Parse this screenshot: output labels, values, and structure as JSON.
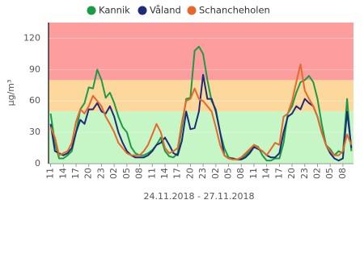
{
  "chart_data": {
    "type": "line",
    "x_label": "24.11.2018 - 27.11.2018",
    "y_label": "µg/m³",
    "categories": [
      "11",
      null,
      null,
      "14",
      null,
      null,
      "17",
      null,
      null,
      "20",
      null,
      null,
      "23",
      null,
      null,
      "02",
      null,
      null,
      "05",
      null,
      null,
      "08",
      null,
      null,
      "11",
      null,
      null,
      "14",
      null,
      null,
      "17",
      null,
      null,
      "20",
      null,
      null,
      "23",
      null,
      null,
      "02",
      null,
      null,
      "05",
      null,
      null,
      "08",
      null,
      null,
      "11",
      null,
      null,
      "14",
      null,
      null,
      "17",
      null,
      null,
      "20",
      null,
      null,
      "23",
      null,
      null,
      "02",
      null,
      null,
      "05",
      null,
      null,
      "08",
      null,
      null
    ],
    "series": [
      {
        "name": "Kannik",
        "color": "#1a9c45",
        "values": [
          48,
          20,
          5,
          5,
          8,
          12,
          30,
          52,
          58,
          73,
          72,
          90,
          80,
          63,
          68,
          58,
          45,
          35,
          30,
          16,
          10,
          8,
          8,
          10,
          13,
          18,
          25,
          12,
          7,
          6,
          10,
          35,
          62,
          63,
          108,
          112,
          105,
          80,
          60,
          52,
          30,
          15,
          6,
          5,
          4,
          5,
          8,
          12,
          18,
          16,
          8,
          3,
          3,
          5,
          5,
          20,
          48,
          55,
          68,
          78,
          80,
          84,
          78,
          62,
          38,
          18,
          14,
          8,
          12,
          10,
          62,
          12
        ]
      },
      {
        "name": "Våland",
        "color": "#1f2a7a",
        "values": [
          38,
          12,
          10,
          8,
          10,
          15,
          30,
          42,
          38,
          52,
          52,
          58,
          50,
          48,
          55,
          45,
          30,
          20,
          12,
          8,
          6,
          6,
          6,
          8,
          12,
          18,
          20,
          25,
          18,
          10,
          8,
          22,
          50,
          33,
          34,
          50,
          85,
          62,
          62,
          50,
          30,
          8,
          5,
          5,
          4,
          4,
          6,
          10,
          16,
          14,
          12,
          8,
          6,
          6,
          10,
          30,
          45,
          48,
          55,
          52,
          62,
          58,
          55,
          45,
          30,
          18,
          10,
          5,
          3,
          5,
          50,
          15
        ]
      },
      {
        "name": "Schancheholen",
        "color": "#e8682a",
        "values": [
          35,
          25,
          8,
          10,
          12,
          20,
          40,
          52,
          48,
          55,
          65,
          60,
          55,
          45,
          38,
          30,
          20,
          15,
          10,
          8,
          8,
          8,
          12,
          18,
          28,
          38,
          30,
          15,
          10,
          12,
          15,
          40,
          60,
          62,
          72,
          62,
          60,
          55,
          50,
          35,
          18,
          8,
          5,
          4,
          4,
          6,
          10,
          14,
          18,
          15,
          12,
          8,
          14,
          20,
          18,
          45,
          48,
          60,
          78,
          95,
          70,
          62,
          55,
          45,
          30,
          18,
          12,
          8,
          8,
          12,
          28,
          18
        ]
      }
    ],
    "bands": [
      {
        "from": 0,
        "to": 50,
        "color": "#c6f5c6"
      },
      {
        "from": 50,
        "to": 80,
        "color": "#fcd89c"
      },
      {
        "from": 80,
        "to": 135,
        "color": "#fd9d9d"
      }
    ],
    "ylim": [
      0,
      135
    ],
    "yticks": [
      0,
      30,
      60,
      90,
      120
    ],
    "grid": true
  }
}
